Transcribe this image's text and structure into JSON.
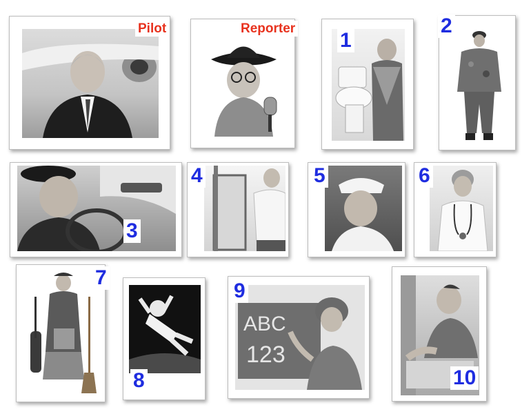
{
  "colors": {
    "word_label": "#e8321e",
    "number_label": "#1f2de0"
  },
  "cards": [
    {
      "id": "pilot",
      "label": "Pilot",
      "kind": "word"
    },
    {
      "id": "reporter",
      "label": "Reporter",
      "kind": "word"
    },
    {
      "id": "plumber",
      "label": "1",
      "kind": "number"
    },
    {
      "id": "soldier",
      "label": "2",
      "kind": "number"
    },
    {
      "id": "driver",
      "label": "3",
      "kind": "number"
    },
    {
      "id": "painter",
      "label": "4",
      "kind": "number"
    },
    {
      "id": "sailor",
      "label": "5",
      "kind": "number"
    },
    {
      "id": "doctor",
      "label": "6",
      "kind": "number"
    },
    {
      "id": "housekeeper",
      "label": "7",
      "kind": "number"
    },
    {
      "id": "astronaut",
      "label": "8",
      "kind": "number"
    },
    {
      "id": "teacher",
      "label": "9",
      "kind": "number"
    },
    {
      "id": "cashier",
      "label": "10",
      "kind": "number"
    }
  ]
}
